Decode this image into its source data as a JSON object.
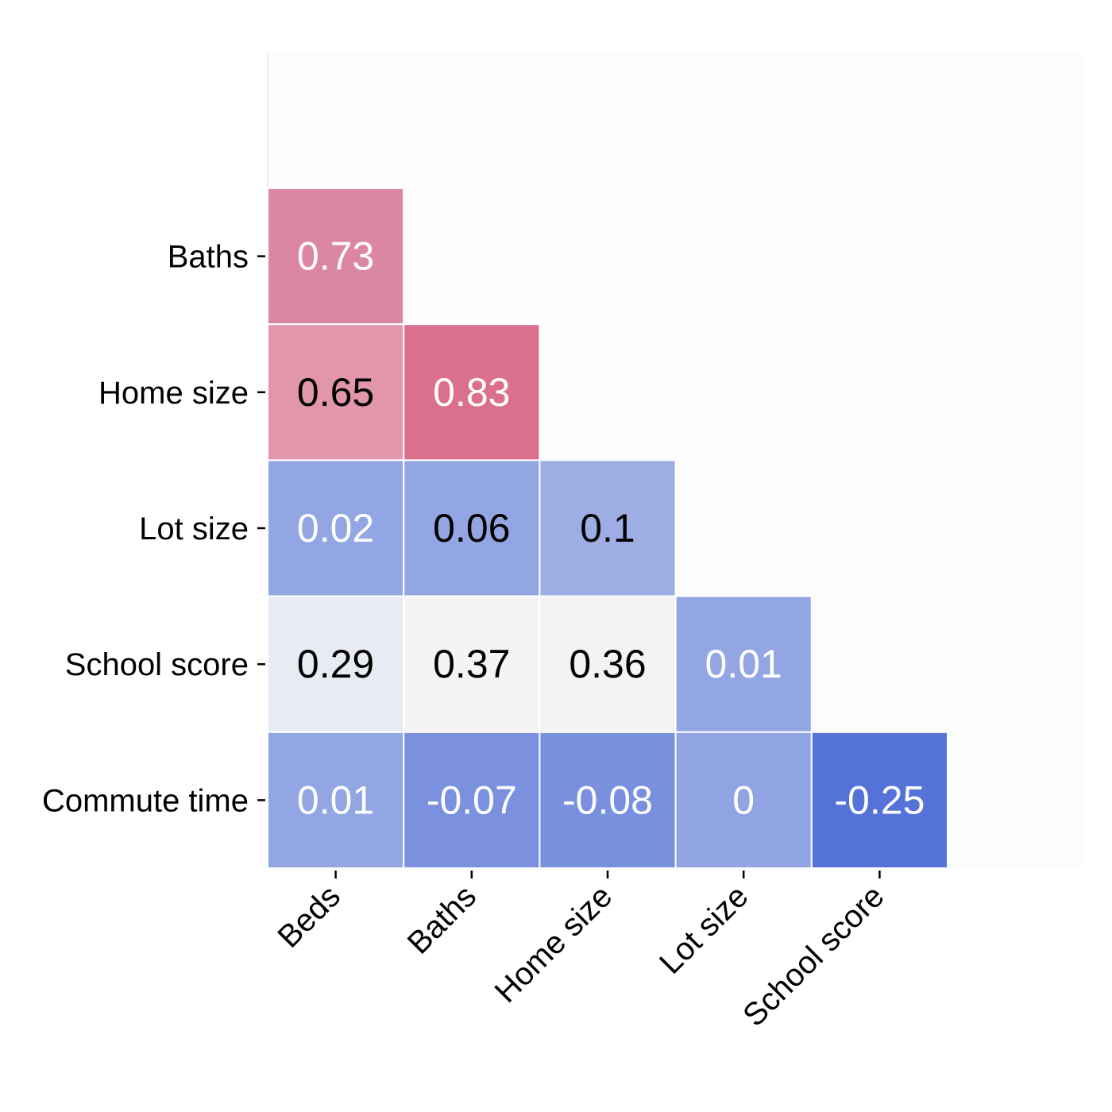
{
  "chart_data": {
    "type": "heatmap",
    "title": "",
    "xlabel": "",
    "ylabel": "",
    "x_categories": [
      "Beds",
      "Baths",
      "Home size",
      "Lot size",
      "School score"
    ],
    "y_categories": [
      "Baths",
      "Home size",
      "Lot size",
      "School score",
      "Commute time"
    ],
    "cells": [
      {
        "row": "Baths",
        "col": "Beds",
        "value": 0.73,
        "label": "0.73",
        "color": "#dc87a2",
        "text_color": "#ffffff"
      },
      {
        "row": "Home size",
        "col": "Beds",
        "value": 0.65,
        "label": "0.65",
        "color": "#e196ab",
        "text_color": "#000000"
      },
      {
        "row": "Home size",
        "col": "Baths",
        "value": 0.83,
        "label": "0.83",
        "color": "#db6f8e",
        "text_color": "#ffffff"
      },
      {
        "row": "Lot size",
        "col": "Beds",
        "value": 0.02,
        "label": "0.02",
        "color": "#93a6e4",
        "text_color": "#ffffff"
      },
      {
        "row": "Lot size",
        "col": "Baths",
        "value": 0.06,
        "label": "0.06",
        "color": "#93a6e4",
        "text_color": "#000000"
      },
      {
        "row": "Lot size",
        "col": "Home size",
        "value": 0.1,
        "label": "0.1",
        "color": "#9eaee4",
        "text_color": "#000000"
      },
      {
        "row": "School score",
        "col": "Beds",
        "value": 0.29,
        "label": "0.29",
        "color": "#e8ebf3",
        "text_color": "#000000"
      },
      {
        "row": "School score",
        "col": "Baths",
        "value": 0.37,
        "label": "0.37",
        "color": "#f6f3f4",
        "text_color": "#000000"
      },
      {
        "row": "School score",
        "col": "Home size",
        "value": 0.36,
        "label": "0.36",
        "color": "#f4f2f3",
        "text_color": "#000000"
      },
      {
        "row": "School score",
        "col": "Lot size",
        "value": 0.01,
        "label": "0.01",
        "color": "#93a6e4",
        "text_color": "#ffffff"
      },
      {
        "row": "Commute time",
        "col": "Beds",
        "value": 0.01,
        "label": "0.01",
        "color": "#93a6e4",
        "text_color": "#ffffff"
      },
      {
        "row": "Commute time",
        "col": "Baths",
        "value": -0.07,
        "label": "-0.07",
        "color": "#7b91e0",
        "text_color": "#ffffff"
      },
      {
        "row": "Commute time",
        "col": "Home size",
        "value": -0.08,
        "label": "-0.08",
        "color": "#7990df",
        "text_color": "#ffffff"
      },
      {
        "row": "Commute time",
        "col": "Lot size",
        "value": 0,
        "label": "0",
        "color": "#90a3e2",
        "text_color": "#ffffff"
      },
      {
        "row": "Commute time",
        "col": "School score",
        "value": -0.25,
        "label": "-0.25",
        "color": "#5572d8",
        "text_color": "#ffffff"
      }
    ],
    "mask": "upper-triangle",
    "background_color": "#fcfcfd",
    "grid": false,
    "legend": "none"
  }
}
